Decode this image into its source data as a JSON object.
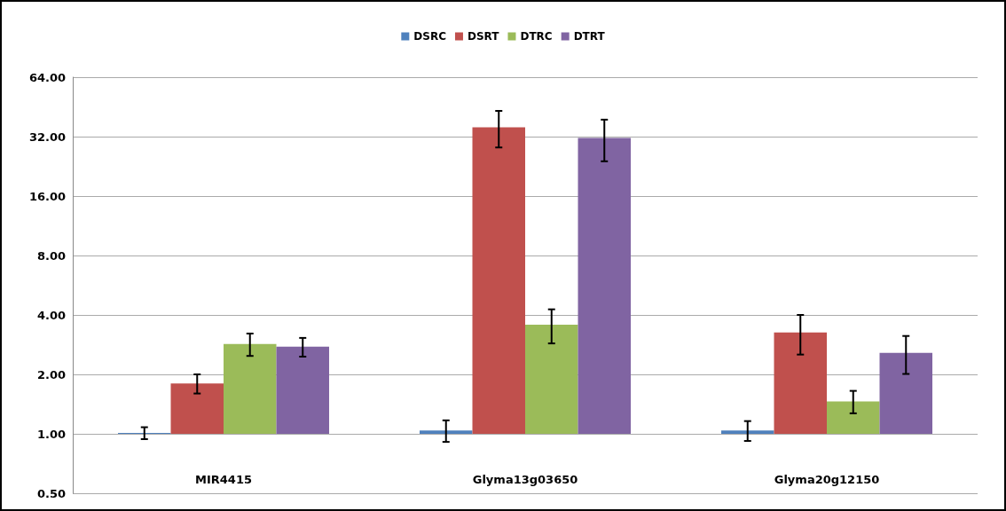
{
  "chart_data": {
    "type": "bar",
    "categories": [
      "MIR4415",
      "Glyma13g03650",
      "Glyma20g12150"
    ],
    "series": [
      {
        "name": "DSRC",
        "color": "#4f81bd",
        "base": [
          1,
          1,
          1
        ],
        "values": [
          0.01,
          0.04,
          0.04
        ],
        "errors": [
          0.07,
          0.13,
          0.12
        ]
      },
      {
        "name": "DSRT",
        "color": "#c0504d",
        "base": [
          1,
          1,
          1
        ],
        "values": [
          0.8,
          34.7,
          2.26
        ],
        "errors": [
          0.2,
          7.5,
          0.74
        ]
      },
      {
        "name": "DTRC",
        "color": "#9bbb59",
        "base": [
          1,
          1,
          1
        ],
        "values": [
          1.85,
          2.57,
          0.46
        ],
        "errors": [
          0.37,
          0.7,
          0.19
        ]
      },
      {
        "name": "DTRT",
        "color": "#8064a2",
        "base": [
          1,
          1,
          1
        ],
        "values": [
          1.76,
          30.5,
          1.57
        ],
        "errors": [
          0.3,
          7.5,
          0.56
        ]
      }
    ],
    "log": "y",
    "ylim": [
      0.5,
      64
    ],
    "yticks": [
      {
        "value": 0.5,
        "label": "0.50"
      },
      {
        "value": 1,
        "label": "1.00"
      },
      {
        "value": 2,
        "label": "2.00"
      },
      {
        "value": 4,
        "label": "4.00"
      },
      {
        "value": 8,
        "label": "8.00"
      },
      {
        "value": 16,
        "label": "16.00"
      },
      {
        "value": 32,
        "label": "32.00"
      },
      {
        "value": 64,
        "label": "64.00"
      }
    ],
    "grid": "y",
    "legend": "top"
  }
}
